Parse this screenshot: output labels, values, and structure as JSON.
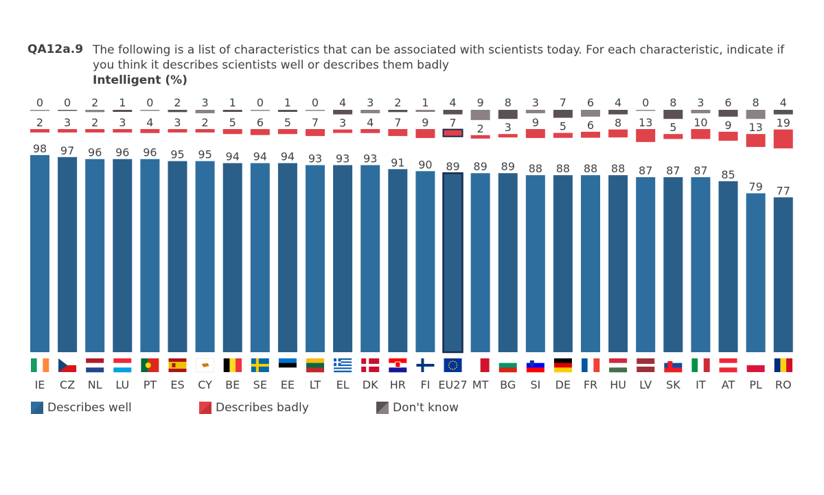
{
  "question": {
    "id": "QA12a.9",
    "text": "The following is a list of characteristics that can be associated with scientists today. For each characteristic, indicate if you think it describes scientists well or describes them badly",
    "subtitle": "Intelligent  (%)"
  },
  "colors": {
    "well": "#2e6e9e",
    "well_alt": "#2a5f8a",
    "badly": "#e0424a",
    "dont_know": "#5a5055",
    "dont_know_alt": "#8a8085",
    "text": "#404040",
    "eu_outline": "#1a2a4a"
  },
  "legend": {
    "well": "Describes well",
    "badly": "Describes badly",
    "dont_know": "Don't know"
  },
  "chart_data": {
    "type": "bar",
    "stacked": true,
    "title": "Intelligent (%)",
    "categories": [
      "IE",
      "CZ",
      "NL",
      "LU",
      "PT",
      "ES",
      "CY",
      "BE",
      "SE",
      "EE",
      "LT",
      "EL",
      "DK",
      "HR",
      "FI",
      "EU27",
      "MT",
      "BG",
      "SI",
      "DE",
      "FR",
      "HU",
      "LV",
      "SK",
      "IT",
      "AT",
      "PL",
      "RO"
    ],
    "series": [
      {
        "name": "Describes well",
        "values": [
          98,
          97,
          96,
          96,
          96,
          95,
          95,
          94,
          94,
          94,
          93,
          93,
          93,
          91,
          90,
          89,
          89,
          89,
          88,
          88,
          88,
          88,
          87,
          87,
          87,
          85,
          79,
          77
        ]
      },
      {
        "name": "Describes badly",
        "values": [
          2,
          3,
          2,
          3,
          4,
          3,
          2,
          5,
          6,
          5,
          7,
          3,
          4,
          7,
          9,
          7,
          2,
          3,
          9,
          5,
          6,
          8,
          13,
          5,
          10,
          9,
          13,
          19
        ]
      },
      {
        "name": "Don't know",
        "values": [
          0,
          0,
          2,
          1,
          0,
          2,
          3,
          1,
          0,
          1,
          0,
          4,
          3,
          2,
          1,
          4,
          9,
          8,
          3,
          7,
          6,
          4,
          0,
          8,
          3,
          6,
          8,
          4
        ]
      }
    ],
    "highlight": "EU27",
    "ylim": [
      0,
      100
    ]
  },
  "flags": {
    "IE": {
      "type": "v",
      "colors": [
        "#169b62",
        "#ffffff",
        "#ff883e"
      ]
    },
    "CZ": {
      "type": "cz",
      "colors": [
        "#ffffff",
        "#d7141a",
        "#11457e"
      ]
    },
    "NL": {
      "type": "h",
      "colors": [
        "#ae1c28",
        "#ffffff",
        "#21468b"
      ]
    },
    "LU": {
      "type": "h",
      "colors": [
        "#ed2939",
        "#ffffff",
        "#00a1de"
      ]
    },
    "PT": {
      "type": "pt",
      "colors": [
        "#046a38",
        "#da291c",
        "#ffd700"
      ]
    },
    "ES": {
      "type": "es",
      "colors": [
        "#aa151b",
        "#f1bf00",
        "#aa151b"
      ]
    },
    "CY": {
      "type": "cy",
      "colors": [
        "#ffffff",
        "#d57800"
      ]
    },
    "BE": {
      "type": "v",
      "colors": [
        "#000000",
        "#fdda24",
        "#ef3340"
      ]
    },
    "SE": {
      "type": "nordic",
      "colors": [
        "#006aa7",
        "#fecc00"
      ]
    },
    "EE": {
      "type": "h",
      "colors": [
        "#0072ce",
        "#000000",
        "#ffffff"
      ]
    },
    "LT": {
      "type": "h",
      "colors": [
        "#fdb913",
        "#006a44",
        "#c1272d"
      ]
    },
    "EL": {
      "type": "gr",
      "colors": [
        "#0d5eaf",
        "#ffffff"
      ]
    },
    "DK": {
      "type": "nordic",
      "colors": [
        "#c8102e",
        "#ffffff"
      ]
    },
    "HR": {
      "type": "hr",
      "colors": [
        "#ff0000",
        "#ffffff",
        "#171796"
      ]
    },
    "FI": {
      "type": "nordic",
      "colors": [
        "#ffffff",
        "#003580"
      ]
    },
    "EU27": {
      "type": "eu",
      "colors": [
        "#003399",
        "#ffcc00"
      ]
    },
    "MT": {
      "type": "v2",
      "colors": [
        "#ffffff",
        "#cf142b"
      ]
    },
    "BG": {
      "type": "h",
      "colors": [
        "#ffffff",
        "#00966e",
        "#d62612"
      ]
    },
    "SI": {
      "type": "si",
      "colors": [
        "#ffffff",
        "#0000ff",
        "#ff0000"
      ]
    },
    "DE": {
      "type": "h",
      "colors": [
        "#000000",
        "#dd0000",
        "#ffce00"
      ]
    },
    "FR": {
      "type": "v",
      "colors": [
        "#0055a4",
        "#ffffff",
        "#ef4135"
      ]
    },
    "HU": {
      "type": "h",
      "colors": [
        "#cd2a3e",
        "#ffffff",
        "#436f4d"
      ]
    },
    "LV": {
      "type": "lv",
      "colors": [
        "#9e3039",
        "#ffffff"
      ]
    },
    "SK": {
      "type": "sk",
      "colors": [
        "#ffffff",
        "#0b4ea2",
        "#ee1c25"
      ]
    },
    "IT": {
      "type": "v",
      "colors": [
        "#009246",
        "#ffffff",
        "#ce2b37"
      ]
    },
    "AT": {
      "type": "h",
      "colors": [
        "#ed2939",
        "#ffffff",
        "#ed2939"
      ]
    },
    "PL": {
      "type": "h2",
      "colors": [
        "#ffffff",
        "#dc143c"
      ]
    },
    "RO": {
      "type": "v",
      "colors": [
        "#002b7f",
        "#fcd116",
        "#ce1126"
      ]
    }
  }
}
